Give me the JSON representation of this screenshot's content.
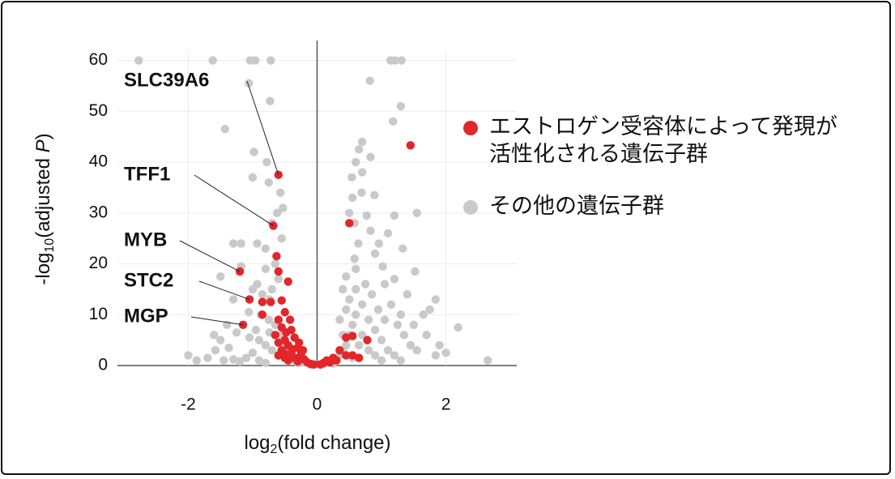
{
  "chart_data": {
    "type": "scatter",
    "x_label": [
      "log",
      "2",
      "(fold change)"
    ],
    "y_label": [
      "-log",
      "10",
      "(adjusted ",
      "P",
      ")"
    ],
    "xlim": [
      -3.1,
      3.1
    ],
    "ylim": [
      0,
      62
    ],
    "xticks": [
      -2,
      0,
      2
    ],
    "yticks": [
      0,
      10,
      20,
      30,
      40,
      50,
      60
    ],
    "grid": true,
    "annotations": [
      {
        "text": "SLC39A6",
        "x": -0.6,
        "y": 37.5
      },
      {
        "text": "TFF1",
        "x": -0.68,
        "y": 27.5
      },
      {
        "text": "MYB",
        "x": -1.2,
        "y": 18.5
      },
      {
        "text": "STC2",
        "x": -1.05,
        "y": 13
      },
      {
        "text": "MGP",
        "x": -1.15,
        "y": 8
      }
    ],
    "series": [
      {
        "name": "エストロゲン受容体によって発現が活性化される遺伝子群",
        "color": "#e3262a",
        "x": [
          -0.6,
          -0.68,
          -1.2,
          -1.05,
          -1.15,
          1.45,
          0.5,
          -0.63,
          -0.6,
          -0.45,
          -0.85,
          -0.72,
          -0.55,
          -0.85,
          -0.5,
          -0.42,
          -0.6,
          -0.55,
          -0.48,
          -0.4,
          -0.35,
          -0.5,
          -0.6,
          -0.45,
          -0.3,
          -0.55,
          -0.4,
          -0.25,
          -0.5,
          -0.35,
          -0.2,
          -0.45,
          -0.3,
          -0.15,
          -0.6,
          -0.65,
          -0.38,
          -0.28,
          -0.22,
          -0.52,
          -0.1,
          -0.05,
          0.05,
          0.1,
          0.2,
          0.3,
          0.45,
          0.55,
          0.65,
          0.35,
          0.45,
          0.55,
          0.78,
          0.25,
          0.15
        ],
        "values": [
          37.5,
          27.5,
          18.5,
          13,
          8,
          43.3,
          28,
          21.5,
          18.5,
          16.5,
          12.5,
          12.5,
          12.8,
          10,
          10.5,
          9,
          9,
          7.5,
          6.5,
          7,
          5.5,
          5,
          4.5,
          4,
          3.5,
          3,
          2.5,
          2.2,
          1.5,
          1.5,
          1.2,
          1,
          0.8,
          0.6,
          2,
          6,
          3.2,
          4.5,
          3,
          2.5,
          0.3,
          0.2,
          0.2,
          0.5,
          0.6,
          1,
          2,
          2,
          1.5,
          3,
          5.5,
          5.8,
          5,
          1.5,
          1
        ]
      },
      {
        "name": "その他の遺伝子群",
        "color": "#c9c9c9",
        "x": [
          -2.77,
          -1.62,
          -1.04,
          -0.96,
          -0.72,
          1.14,
          1.21,
          1.31,
          -1.06,
          -0.73,
          -1.43,
          0.82,
          1.3,
          1.18,
          0.7,
          0.65,
          0.83,
          -0.98,
          -0.78,
          -1.0,
          -0.75,
          -0.57,
          -0.53,
          0.54,
          0.69,
          0.89,
          1.2,
          1.55,
          0.77,
          0.58,
          0.83,
          0.64,
          0.96,
          1.33,
          1.52,
          0.58,
          1.02,
          0.45,
          1.84,
          2.19,
          1.84,
          2.65,
          -1.87,
          -1.58,
          -1.37,
          -1.3,
          -1.18,
          -0.93,
          -0.8,
          -1.18,
          -1.5,
          -0.93,
          -0.74,
          -1.3,
          -1.06,
          -0.87,
          -1.25,
          -1.5,
          -0.74,
          -0.9,
          -0.8,
          -0.7,
          -0.6,
          -1.0,
          -1.1,
          -0.9,
          -0.8,
          -1.2,
          -1.3,
          -0.65,
          -0.75,
          -0.95,
          -1.05,
          -0.55,
          -0.5,
          -0.45,
          -0.4,
          -0.35,
          -0.3,
          -0.7,
          -0.6,
          -0.65,
          -0.55,
          -0.7,
          -0.62,
          -0.8,
          -1.0,
          -0.85,
          -1.4,
          -1.6,
          -2.0,
          -1.7,
          -1.45,
          0.3,
          0.35,
          0.4,
          0.45,
          0.5,
          0.55,
          0.6,
          0.45,
          0.5,
          0.6,
          0.7,
          0.8,
          0.9,
          1.0,
          1.1,
          1.2,
          1.3,
          0.7,
          0.65,
          0.8,
          0.9,
          1.0,
          0.55,
          0.75,
          0.85,
          0.95,
          1.05,
          1.15,
          1.25,
          1.35,
          1.45,
          1.55,
          1.65,
          1.4,
          1.2,
          0.6,
          0.4,
          0.35,
          0.4,
          1.7,
          1.9,
          2.0,
          1.75,
          0.9,
          1.1,
          0.5,
          0.55,
          0.6,
          0.7,
          1.05,
          1.3,
          1.5,
          0.1,
          0.15,
          -0.1,
          -0.2,
          0.2,
          0.25
        ],
        "values": [
          60,
          60,
          60,
          60,
          60,
          60,
          60,
          60,
          55.5,
          52,
          46.5,
          56,
          51,
          48,
          44,
          42.5,
          41,
          42,
          40,
          37,
          36,
          34,
          31,
          37,
          34,
          33.5,
          29.5,
          30,
          29.5,
          28,
          26.5,
          24,
          24,
          23,
          18.5,
          21,
          19.5,
          17.5,
          13,
          7.5,
          2,
          1,
          1,
          3,
          3.5,
          24,
          24,
          24,
          23,
          19.5,
          17.5,
          16,
          13,
          13,
          10.5,
          10,
          6.5,
          5,
          6.5,
          5,
          4,
          3,
          2,
          2.5,
          1.5,
          1,
          0.5,
          0.8,
          1.2,
          8,
          9,
          7,
          5.5,
          6,
          4,
          3,
          2,
          1,
          0.5,
          15,
          17,
          20,
          25,
          28,
          30,
          19,
          15,
          14,
          8,
          6,
          2,
          1.5,
          1,
          1,
          2,
          3,
          4,
          6,
          8,
          10,
          11,
          13,
          15,
          12,
          9,
          7,
          5,
          3,
          2,
          1,
          6,
          4,
          3,
          2,
          1,
          1.5,
          16,
          14,
          11,
          9,
          12,
          8,
          6,
          4,
          3,
          10,
          14,
          17,
          19,
          15,
          9,
          6,
          6,
          4,
          2.5,
          11,
          22,
          26,
          30,
          33,
          40,
          38,
          16,
          10,
          8,
          0.3,
          0.5,
          0.2,
          0.6,
          0.8,
          0.4
        ]
      }
    ]
  }
}
